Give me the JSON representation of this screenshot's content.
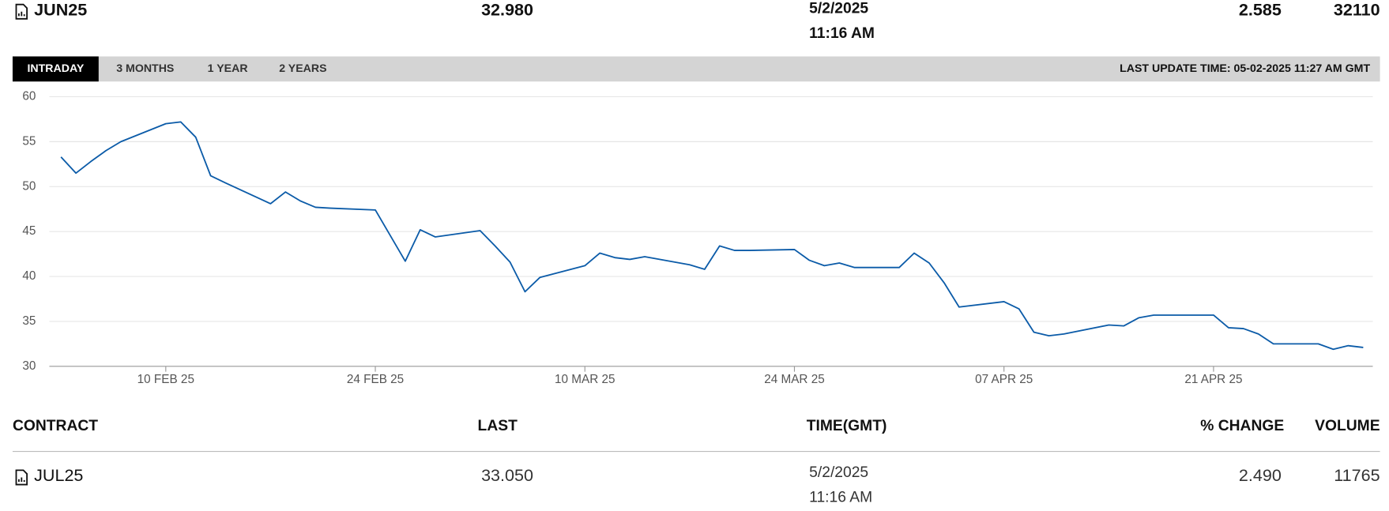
{
  "header": {
    "contract": "JUN25",
    "last": "32.980",
    "date": "5/2/2025",
    "time": "11:16 AM",
    "change": "2.585",
    "volume": "32110"
  },
  "tabs": [
    "INTRADAY",
    "3 MONTHS",
    "1 YEAR",
    "2 YEARS"
  ],
  "last_update": "LAST UPDATE TIME: 05-02-2025 11:27 AM GMT",
  "chart_data": {
    "type": "line",
    "color": "#0b5ba8",
    "grid": true,
    "x": [
      "2025-02-03",
      "2025-02-04",
      "2025-02-05",
      "2025-02-06",
      "2025-02-07",
      "2025-02-10",
      "2025-02-11",
      "2025-02-12",
      "2025-02-13",
      "2025-02-14",
      "2025-02-17",
      "2025-02-18",
      "2025-02-19",
      "2025-02-20",
      "2025-02-21",
      "2025-02-24",
      "2025-02-26",
      "2025-02-27",
      "2025-02-28",
      "2025-03-03",
      "2025-03-04",
      "2025-03-05",
      "2025-03-06",
      "2025-03-07",
      "2025-03-10",
      "2025-03-11",
      "2025-03-12",
      "2025-03-13",
      "2025-03-14",
      "2025-03-17",
      "2025-03-18",
      "2025-03-19",
      "2025-03-20",
      "2025-03-21",
      "2025-03-24",
      "2025-03-25",
      "2025-03-26",
      "2025-03-27",
      "2025-03-28",
      "2025-03-31",
      "2025-04-01",
      "2025-04-02",
      "2025-04-03",
      "2025-04-04",
      "2025-04-07",
      "2025-04-08",
      "2025-04-09",
      "2025-04-10",
      "2025-04-11",
      "2025-04-14",
      "2025-04-15",
      "2025-04-16",
      "2025-04-17",
      "2025-04-21",
      "2025-04-22",
      "2025-04-23",
      "2025-04-24",
      "2025-04-25",
      "2025-04-28",
      "2025-04-29",
      "2025-04-30",
      "2025-05-01"
    ],
    "values": [
      53.3,
      51.5,
      52.8,
      54.0,
      55.0,
      57.0,
      57.2,
      55.5,
      51.2,
      50.4,
      48.1,
      49.4,
      48.4,
      47.7,
      47.6,
      47.4,
      41.7,
      45.2,
      44.4,
      45.1,
      43.4,
      41.6,
      38.3,
      39.9,
      41.2,
      42.6,
      42.1,
      41.9,
      42.2,
      41.3,
      40.8,
      43.4,
      42.9,
      42.9,
      43.0,
      41.8,
      41.2,
      41.5,
      41.0,
      41.0,
      42.6,
      41.5,
      39.3,
      36.6,
      37.2,
      36.4,
      33.8,
      33.4,
      33.6,
      34.6,
      34.5,
      35.4,
      35.7,
      35.7,
      34.3,
      34.2,
      33.6,
      32.5,
      32.5,
      31.9,
      32.3,
      32.1
    ],
    "xlim": [
      "2025-02-02",
      "2025-05-02"
    ],
    "xticks": [
      {
        "value": "2025-02-10",
        "label": "10 FEB 25"
      },
      {
        "value": "2025-02-24",
        "label": "24 FEB 25"
      },
      {
        "value": "2025-03-10",
        "label": "10 MAR 25"
      },
      {
        "value": "2025-03-24",
        "label": "24 MAR 25"
      },
      {
        "value": "2025-04-07",
        "label": "07 APR 25"
      },
      {
        "value": "2025-04-21",
        "label": "21 APR 25"
      }
    ],
    "ylim": [
      30,
      60
    ],
    "yticks": [
      30,
      35,
      40,
      45,
      50,
      55,
      60
    ]
  },
  "table": {
    "columns": [
      "CONTRACT",
      "LAST",
      "TIME(GMT)",
      "% CHANGE",
      "VOLUME"
    ],
    "rows": [
      {
        "contract": "JUL25",
        "last": "33.050",
        "date": "5/2/2025",
        "time": "11:16 AM",
        "change": "2.490",
        "volume": "11765"
      }
    ]
  }
}
